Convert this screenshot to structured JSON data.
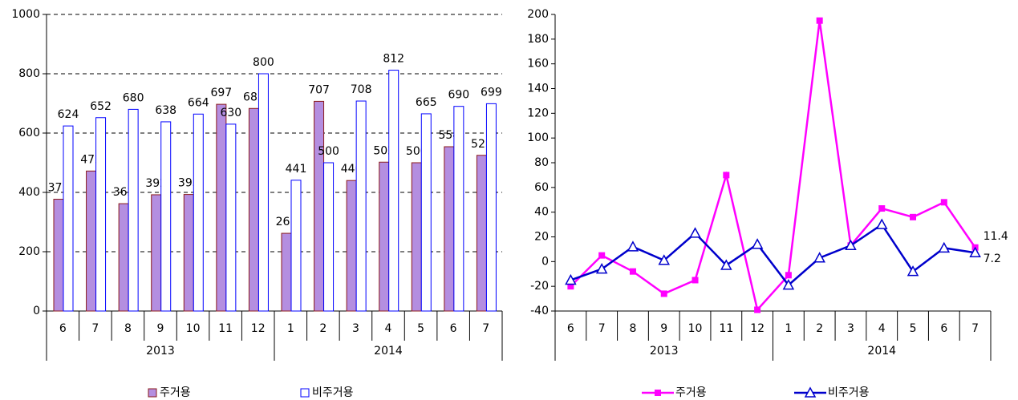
{
  "chart_data": [
    {
      "type": "bar",
      "categories": [
        "6",
        "7",
        "8",
        "9",
        "10",
        "11",
        "12",
        "1",
        "2",
        "3",
        "4",
        "5",
        "6",
        "7"
      ],
      "x_groups": [
        {
          "label": "2013",
          "count": 7
        },
        {
          "label": "2014",
          "count": 7
        }
      ],
      "series": [
        {
          "name": "주거용",
          "color": "#b48ee0",
          "edge": "#8b1a1a",
          "values": [
            377,
            472,
            362,
            392,
            393,
            697,
            683,
            262,
            707,
            440,
            502,
            500,
            554,
            525
          ]
        },
        {
          "name": "비주거용",
          "color": "#ffffff",
          "edge": "#0000ff",
          "values": [
            624,
            652,
            680,
            638,
            664,
            630,
            800,
            441,
            500,
            708,
            812,
            665,
            690,
            699
          ]
        }
      ],
      "ylim": [
        0,
        1000
      ],
      "yticks": [
        0,
        200,
        400,
        600,
        800,
        1000
      ],
      "grid": true
    },
    {
      "type": "line",
      "categories": [
        "6",
        "7",
        "8",
        "9",
        "10",
        "11",
        "12",
        "1",
        "2",
        "3",
        "4",
        "5",
        "6",
        "7"
      ],
      "x_groups": [
        {
          "label": "2013",
          "count": 7
        },
        {
          "label": "2014",
          "count": 7
        }
      ],
      "series": [
        {
          "name": "주거용",
          "color": "#ff00ff",
          "marker": "square",
          "values": [
            -20,
            5,
            -8,
            -26,
            -15,
            70,
            -39,
            -11,
            195,
            13,
            43,
            36,
            48,
            11.4
          ],
          "value_labels": [
            null,
            null,
            null,
            null,
            null,
            null,
            null,
            null,
            null,
            null,
            null,
            null,
            null,
            "11.4"
          ]
        },
        {
          "name": "비주거용",
          "color": "#0000cc",
          "marker": "triangle",
          "values": [
            -15,
            -6,
            12,
            1,
            23,
            -3,
            14,
            -19,
            3,
            13,
            30,
            -8,
            11,
            7.2
          ],
          "value_labels": [
            null,
            null,
            null,
            null,
            null,
            null,
            null,
            null,
            null,
            null,
            null,
            null,
            null,
            "7.2"
          ]
        }
      ],
      "ylim": [
        -40,
        200
      ],
      "yticks": [
        -40,
        -20,
        0,
        20,
        40,
        60,
        80,
        100,
        120,
        140,
        160,
        180,
        200
      ],
      "grid": false
    }
  ]
}
